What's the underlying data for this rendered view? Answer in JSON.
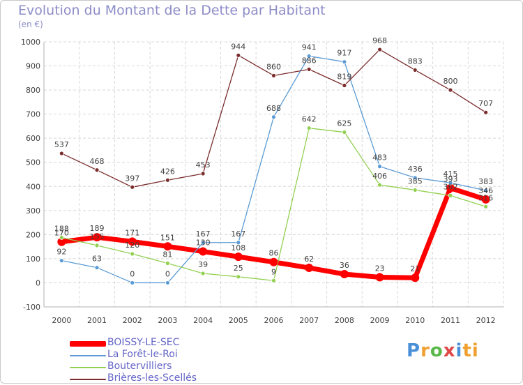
{
  "title": "Evolution du Montant de la Dette par Habitant",
  "unit": "(en €)",
  "logo": [
    "P",
    "r",
    "o",
    "x",
    "i",
    "ti"
  ],
  "chart_data": {
    "type": "line",
    "x": [
      "2000",
      "2001",
      "2002",
      "2003",
      "2004",
      "2005",
      "2006",
      "2007",
      "2008",
      "2009",
      "2010",
      "2011",
      "2012"
    ],
    "ylim": [
      -100,
      1000
    ],
    "yticks": [
      -100,
      0,
      100,
      200,
      300,
      400,
      500,
      600,
      700,
      800,
      900,
      1000
    ],
    "grid": true,
    "legend_position": "bottom-left",
    "series": [
      {
        "name": "BOISSY-LE-SEC",
        "color": "#ff0000",
        "width": 7,
        "dot": 6,
        "values": [
          170,
          189,
          171,
          151,
          130,
          108,
          86,
          62,
          36,
          23,
          21,
          393,
          346
        ],
        "labels": [
          "170",
          "189",
          "171",
          "151",
          "130",
          "108",
          "86",
          "62",
          "36",
          "23",
          "21",
          "393",
          "346"
        ]
      },
      {
        "name": "La Forêt-le-Roi",
        "color": "#5b9bd5",
        "width": 1.3,
        "dot": 3,
        "values": [
          92,
          63,
          0,
          0,
          167,
          167,
          688,
          941,
          917,
          483,
          436,
          415,
          383
        ],
        "labels": [
          "92",
          "63",
          "0",
          "0",
          "167",
          "167",
          "688",
          "941",
          "917",
          "483",
          "436",
          "415",
          "383"
        ]
      },
      {
        "name": "Boutervilliers",
        "color": "#92d050",
        "width": 1.3,
        "dot": 3,
        "values": [
          188,
          155,
          120,
          81,
          39,
          25,
          9,
          642,
          625,
          406,
          385,
          362,
          316
        ],
        "labels": [
          "188",
          "155",
          "120",
          "81",
          "39",
          "25",
          "9",
          "642",
          "625",
          "406",
          "385",
          "362",
          "316"
        ]
      },
      {
        "name": "Brières-les-Scellés",
        "color": "#7b2c2c",
        "width": 1.3,
        "dot": 3,
        "values": [
          537,
          468,
          397,
          426,
          453,
          944,
          860,
          886,
          819,
          968,
          883,
          800,
          707
        ],
        "labels": [
          "537",
          "468",
          "397",
          "426",
          "453",
          "944",
          "860",
          "886",
          "819",
          "968",
          "883",
          "800",
          "707"
        ]
      }
    ]
  }
}
